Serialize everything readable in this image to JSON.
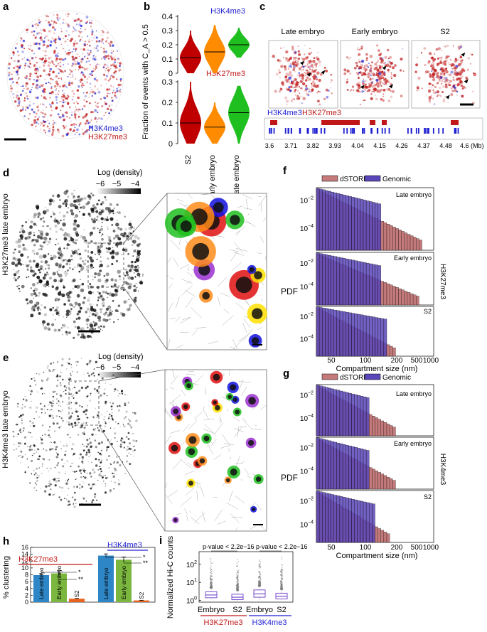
{
  "panel_labels": {
    "a": "a",
    "b": "b",
    "c": "c",
    "d": "d",
    "e": "e",
    "f": "f",
    "g": "g",
    "h": "h",
    "i": "i"
  },
  "colors": {
    "h3k4me3": "#1f1fd1",
    "h3k27me3": "#c01818",
    "s2": "#c00000",
    "early": "#ff8c00",
    "late": "#1fbf1f",
    "dstorm": "#c47a7a",
    "genomic": "#5a46b8",
    "bar_late": "#2f86c6",
    "bar_early": "#7bb63f",
    "bar_s2": "#e8641e"
  },
  "panel_a": {
    "legend": [
      "H3K4me3",
      "H3K27me3"
    ]
  },
  "panel_b": {
    "ylabel": "Fraction of events with C_A > 0.5",
    "categories": [
      "S2",
      "Early embryo",
      "Late embryo"
    ],
    "chart_data": [
      {
        "type": "violin",
        "title": "H3K4me3",
        "ylim": [
          0,
          0.4
        ],
        "ticks": [
          "0",
          "0.1",
          "0.2",
          "0.3",
          "0.4"
        ],
        "medians": [
          0.11,
          0.15,
          0.2
        ],
        "mins": [
          0.0,
          0.0,
          0.11
        ],
        "maxs": [
          0.3,
          0.34,
          0.32
        ]
      },
      {
        "type": "violin",
        "title": "H3K27me3",
        "ylim": [
          0,
          0.3
        ],
        "ticks": [
          "0",
          "0.1",
          "0.2",
          "0.3"
        ],
        "medians": [
          0.1,
          0.08,
          0.15
        ],
        "mins": [
          0.0,
          0.0,
          0.0
        ],
        "maxs": [
          0.3,
          0.2,
          0.28
        ]
      }
    ]
  },
  "panel_c": {
    "titles": [
      "Late embryo",
      "Early embryo",
      "S2"
    ],
    "legend": [
      "H3K4me3",
      "H3K27me3"
    ],
    "axis_ticks": [
      "3.6",
      "3.71",
      "3.82",
      "3.93",
      "4.04",
      "4.15",
      "4.26",
      "4.37",
      "4.48",
      "4.6 (Mb)"
    ]
  },
  "panel_d": {
    "ylabel": "H3K27me3 late embryo",
    "density_label": "Log (density)",
    "density_ticks": [
      "−6",
      "−5",
      "−4"
    ]
  },
  "panel_e": {
    "ylabel": "H3K4me3 late embryo",
    "density_label": "Log (density)",
    "density_ticks": [
      "−6",
      "−5",
      "−4"
    ]
  },
  "panel_f": {
    "legend": [
      "dSTORM",
      "Genomic"
    ],
    "ylabel": "PDF",
    "xlabel": "Compartment size (nm)",
    "side_label": "H3K27me3",
    "xticks": [
      "50",
      "100",
      "200",
      "500",
      "1000"
    ],
    "yticks": [
      "10^-2",
      "10^-4"
    ],
    "subtitles": [
      "Late embryo",
      "Early embryo",
      "S2"
    ],
    "chart_data": {
      "type": "histogram",
      "xscale": "log",
      "xlim": [
        20,
        1000
      ],
      "series": [
        {
          "name": "dSTORM Late embryo",
          "max_x": 650
        },
        {
          "name": "Genomic Late embryo",
          "max_x": 160
        },
        {
          "name": "dSTORM Early embryo",
          "max_x": 600
        },
        {
          "name": "Genomic Early embryo",
          "max_x": 170
        },
        {
          "name": "dSTORM S2",
          "max_x": 270
        },
        {
          "name": "Genomic S2",
          "max_x": 200
        }
      ]
    }
  },
  "panel_g": {
    "legend": [
      "dSTORM",
      "Genomic"
    ],
    "ylabel": "PDF",
    "xlabel": "Compartment size (nm)",
    "side_label": "H3K4me3",
    "xticks": [
      "50",
      "100",
      "200",
      "500",
      "1000"
    ],
    "yticks": [
      "10^-2",
      "10^-4"
    ],
    "subtitles": [
      "Late embryo",
      "Early embryo",
      "S2"
    ],
    "chart_data": {
      "type": "histogram",
      "xscale": "log",
      "xlim": [
        20,
        1000
      ],
      "series": [
        {
          "name": "dSTORM Late embryo",
          "max_x": 270
        },
        {
          "name": "Genomic Late embryo",
          "max_x": 110
        },
        {
          "name": "dSTORM Early embryo",
          "max_x": 270
        },
        {
          "name": "Genomic Early embryo",
          "max_x": 110
        },
        {
          "name": "dSTORM S2",
          "max_x": 220
        },
        {
          "name": "Genomic S2",
          "max_x": 130
        }
      ]
    }
  },
  "panel_h": {
    "ylabel": "% clustering",
    "yticks": [
      "0",
      "2",
      "4",
      "6",
      "8",
      "10",
      "12",
      "14",
      "16"
    ],
    "groups": [
      "H3K27me3",
      "H3K4me3"
    ],
    "sig": {
      "star1": "*",
      "star2": "**"
    },
    "chart_data": {
      "type": "bar",
      "ylim": [
        0,
        16
      ],
      "categories": [
        "Late embryo",
        "Early embryo",
        "S2",
        "Late embryo",
        "Early embryo",
        "S2"
      ],
      "values": [
        7.9,
        8.4,
        1.0,
        13.6,
        12.4,
        0.5
      ],
      "errors": [
        0.4,
        0.8,
        0.1,
        0.5,
        0.8,
        0.05
      ]
    }
  },
  "panel_i": {
    "ylabel": "Normalized Hi-C counts",
    "pvalue": "p-value < 2.2e−16",
    "categories": [
      "Embryo",
      "S2",
      "Embryo",
      "S2"
    ],
    "groups": [
      "H3K27me3",
      "H3K4me3"
    ],
    "yticks": [
      "10^0",
      "10^1",
      "10^2"
    ],
    "chart_data": {
      "type": "box",
      "yscale": "log",
      "ylim": [
        0.8,
        500
      ],
      "medians": [
        2.0,
        1.5,
        2.3,
        1.7
      ],
      "q1": [
        1.4,
        1.1,
        1.5,
        1.2
      ],
      "q3": [
        3.0,
        2.2,
        3.8,
        2.5
      ]
    }
  }
}
